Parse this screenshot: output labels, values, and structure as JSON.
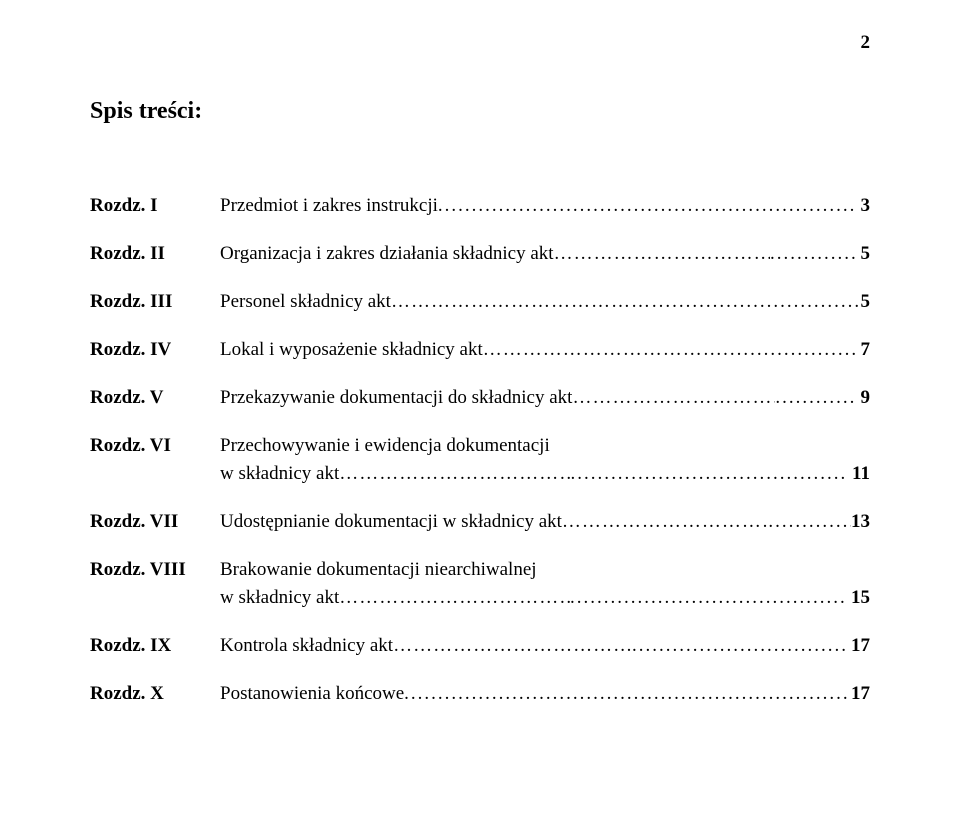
{
  "page_number": "2",
  "title": "Spis treści:",
  "entries": [
    {
      "label": "Rozdz. I",
      "text": "Przedmiot i zakres instrukcji",
      "leader": "dots",
      "page": "3"
    },
    {
      "label": "Rozdz. II",
      "text": "Organizacja i zakres działania składnicy akt",
      "leader": "ellipsis",
      "postleader": "dots",
      "page": "5"
    },
    {
      "label": "Rozdz. III",
      "text": "Personel składnicy akt",
      "leader": "ellipsis",
      "postleader": "dots",
      "page": "5",
      "nospace_page": true
    },
    {
      "label": "Rozdz. IV",
      "text": "Lokal i wyposażenie składnicy akt",
      "leader": "ellipsis",
      "postleader": "dots",
      "page": "7"
    },
    {
      "label": "Rozdz. V",
      "text": "Przekazywanie dokumentacji do składnicy akt",
      "leader": "ellipsis",
      "postleader": "dots",
      "page": "9"
    },
    {
      "label": "Rozdz. VI",
      "text_line1": "Przechowywanie i ewidencja dokumentacji",
      "text_line2": "w składnicy akt",
      "leader": "ellipsis",
      "postleader": "dots",
      "page": "11"
    },
    {
      "label": "Rozdz. VII",
      "text": "Udostępnianie dokumentacji w składnicy akt",
      "leader": "ellipsis",
      "postleader": "dots",
      "page": "13",
      "nospace_page": true
    },
    {
      "label": "Rozdz. VIII",
      "text_line1": "Brakowanie dokumentacji niearchiwalnej",
      "text_line2": "w składnicy akt",
      "leader": "ellipsis",
      "postleader": "dots",
      "page": "15"
    },
    {
      "label": "Rozdz. IX",
      "text": "Kontrola składnicy akt",
      "leader": "ellipsis",
      "postleader": "dots",
      "page": "17"
    },
    {
      "label": "Rozdz. X",
      "text": "Postanowienia końcowe",
      "leader": "dots",
      "page": "17"
    }
  ],
  "colors": {
    "background": "#ffffff",
    "text": "#000000"
  },
  "fonts": {
    "body_family": "Times New Roman",
    "body_size_pt": 14,
    "title_size_pt": 18,
    "label_weight": "bold",
    "page_weight": "bold"
  }
}
